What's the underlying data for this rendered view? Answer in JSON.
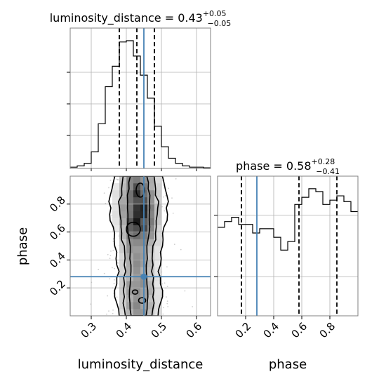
{
  "chart_data": [
    {
      "type": "histogram",
      "panel": "luminosity_distance",
      "title_name": "luminosity_distance",
      "title_value": "0.43",
      "title_plus": "+0.05",
      "title_minus": "−0.05",
      "bin_edges": [
        0.24,
        0.26,
        0.28,
        0.3,
        0.32,
        0.34,
        0.36,
        0.38,
        0.4,
        0.42,
        0.44,
        0.46,
        0.48,
        0.5,
        0.52,
        0.54,
        0.56,
        0.58,
        0.6,
        0.62,
        0.64
      ],
      "counts": [
        0.01,
        0.02,
        0.04,
        0.13,
        0.35,
        0.64,
        0.8,
        0.99,
        1.0,
        0.88,
        0.73,
        0.55,
        0.33,
        0.17,
        0.08,
        0.04,
        0.02,
        0.01,
        0.01,
        0.005
      ],
      "quantiles": [
        0.38,
        0.43,
        0.48
      ],
      "truth": 0.45,
      "xlim": [
        0.24,
        0.64
      ]
    },
    {
      "type": "histogram",
      "panel": "phase",
      "title_name": "phase",
      "title_value": "0.58",
      "title_plus": "+0.28",
      "title_minus": "−0.41",
      "bin_edges": [
        0.0,
        0.05,
        0.1,
        0.15,
        0.2,
        0.25,
        0.3,
        0.35,
        0.4,
        0.45,
        0.5,
        0.55,
        0.6,
        0.65,
        0.7,
        0.75,
        0.8,
        0.85,
        0.9,
        0.95,
        1.0
      ],
      "counts": [
        0.62,
        0.66,
        0.69,
        0.64,
        0.64,
        0.58,
        0.61,
        0.61,
        0.55,
        0.46,
        0.52,
        0.78,
        0.83,
        0.89,
        0.87,
        0.78,
        0.81,
        0.84,
        0.8,
        0.73
      ],
      "quantiles": [
        0.17,
        0.58,
        0.85
      ],
      "truth": 0.28,
      "xlim": [
        0.0,
        1.0
      ],
      "xticks": [
        "0.2",
        "0.4",
        "0.6",
        "0.8"
      ],
      "xlabel": "phase"
    },
    {
      "type": "heatmap",
      "panel": "2d",
      "x_name": "luminosity_distance",
      "y_name": "phase",
      "xlim": [
        0.24,
        0.64
      ],
      "ylim": [
        0.0,
        1.0
      ],
      "xticks": [
        "0.3",
        "0.4",
        "0.5",
        "0.6"
      ],
      "yticks": [
        "0.2",
        "0.4",
        "0.6",
        "0.8"
      ],
      "xlabel": "luminosity_distance",
      "ylabel": "phase",
      "truth": [
        0.45,
        0.28
      ],
      "center_x": 0.435,
      "sigma_x": 0.035
    }
  ],
  "colors": {
    "truth": "#4682b4",
    "histogram": "#000000",
    "quantile": "#000000"
  }
}
